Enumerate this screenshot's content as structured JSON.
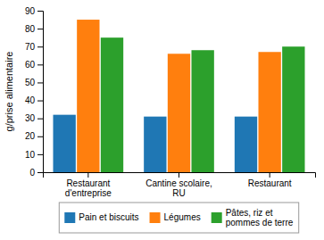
{
  "chart_data": {
    "type": "bar",
    "categories": [
      "Restaurant\nd'entreprise",
      "Cantine scolaire,\nRU",
      "Restaurant"
    ],
    "series": [
      {
        "name": "Pain et biscuits",
        "values": [
          32,
          31,
          31
        ]
      },
      {
        "name": "Légumes",
        "values": [
          85,
          66,
          67
        ]
      },
      {
        "name": "Pâtes, riz et\npommes de terre",
        "values": [
          75,
          68,
          70
        ]
      }
    ],
    "ylabel": "g/prise alimentaire",
    "ylim": [
      0,
      90
    ],
    "yticks": [
      0,
      10,
      20,
      30,
      40,
      50,
      60,
      70,
      80,
      90
    ],
    "grid": false,
    "legend": "bottom"
  }
}
